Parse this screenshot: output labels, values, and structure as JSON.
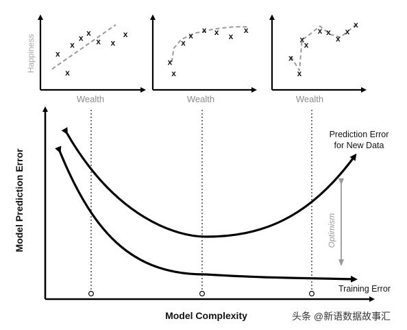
{
  "panels": [
    {
      "x_label": "Wealth",
      "y_label": "Happiness",
      "point_mark": "x",
      "points": [
        [
          0.18,
          0.52
        ],
        [
          0.28,
          0.25
        ],
        [
          0.33,
          0.65
        ],
        [
          0.42,
          0.75
        ],
        [
          0.5,
          0.82
        ],
        [
          0.6,
          0.7
        ],
        [
          0.75,
          0.68
        ],
        [
          0.88,
          0.8
        ]
      ],
      "fit": [
        [
          0.12,
          0.3
        ],
        [
          0.78,
          0.94
        ]
      ]
    },
    {
      "x_label": "Wealth",
      "y_label": "",
      "point_mark": "x",
      "points": [
        [
          0.18,
          0.4
        ],
        [
          0.22,
          0.24
        ],
        [
          0.32,
          0.68
        ],
        [
          0.4,
          0.78
        ],
        [
          0.54,
          0.86
        ],
        [
          0.67,
          0.83
        ],
        [
          0.82,
          0.77
        ],
        [
          0.98,
          0.86
        ]
      ],
      "fit": [
        [
          0.2,
          0.4
        ],
        [
          0.22,
          0.6
        ],
        [
          0.3,
          0.73
        ],
        [
          0.45,
          0.82
        ],
        [
          0.65,
          0.88
        ],
        [
          0.85,
          0.91
        ],
        [
          1.0,
          0.91
        ]
      ]
    },
    {
      "x_label": "Wealth",
      "y_label": "",
      "point_mark": "x",
      "points": [
        [
          0.22,
          0.46
        ],
        [
          0.32,
          0.24
        ],
        [
          0.35,
          0.73
        ],
        [
          0.4,
          0.65
        ],
        [
          0.56,
          0.85
        ],
        [
          0.66,
          0.83
        ],
        [
          0.77,
          0.74
        ],
        [
          0.88,
          0.84
        ],
        [
          0.98,
          0.94
        ]
      ],
      "fit": [
        [
          0.22,
          0.48
        ],
        [
          0.32,
          0.28
        ],
        [
          0.35,
          0.72
        ],
        [
          0.44,
          0.8
        ],
        [
          0.56,
          0.92
        ],
        [
          0.68,
          0.8
        ],
        [
          0.8,
          0.76
        ],
        [
          0.92,
          0.88
        ],
        [
          0.98,
          0.94
        ]
      ]
    }
  ],
  "main": {
    "x_label": "Model Complexity",
    "y_label": "Model Prediction Error",
    "curves": {
      "prediction_error": {
        "line1": "Prediction Error",
        "line2": "for New Data"
      },
      "training_error": {
        "label": "Training Error"
      }
    },
    "optimism_label": "Optimism"
  },
  "watermark": "头条 @新语数据故事汇"
}
